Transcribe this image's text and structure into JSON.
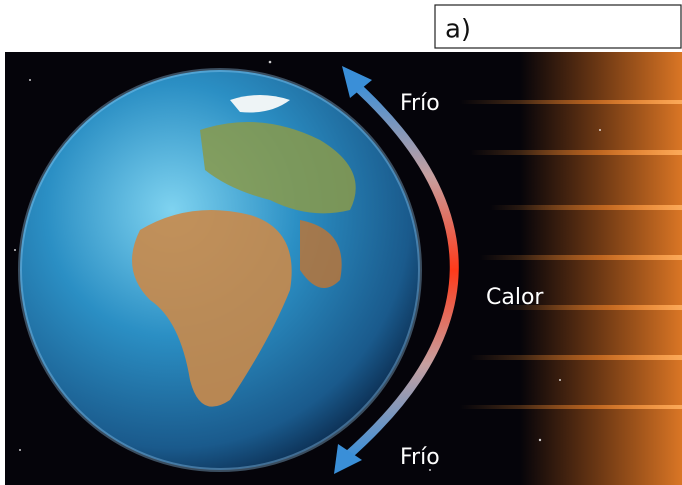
{
  "label": "a)",
  "annotations": [
    "Frío",
    "Calor",
    "Frío"
  ]
}
